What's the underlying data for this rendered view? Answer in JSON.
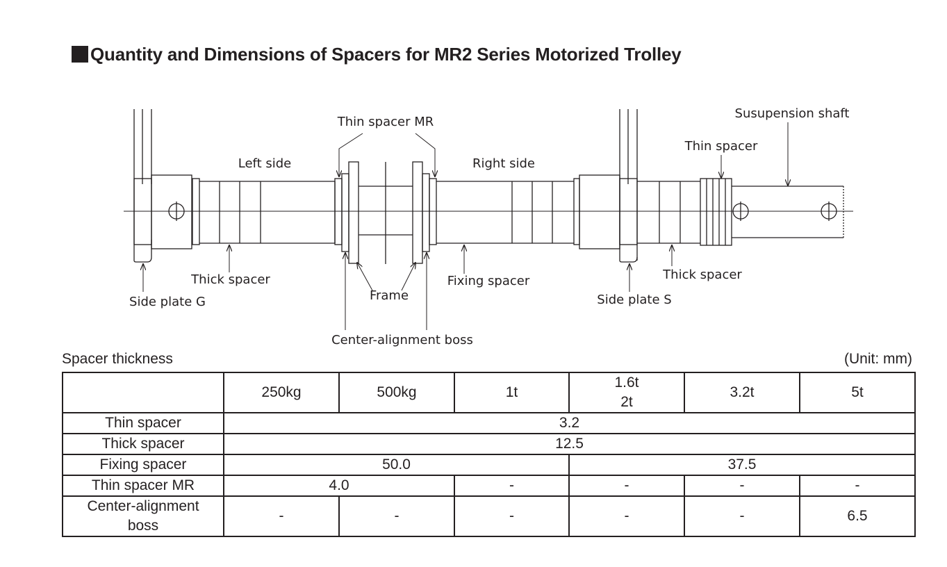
{
  "title": "Quantity and Dimensions of Spacers for MR2 Series Motorized Trolley",
  "diagram": {
    "labels": {
      "thin_spacer_mr": "Thin spacer MR",
      "suspension_shaft": "Susupension shaft",
      "thin_spacer": "Thin spacer",
      "left_side": "Left side",
      "right_side": "Right side",
      "thick_spacer_left": "Thick spacer",
      "side_plate_g": "Side plate G",
      "frame": "Frame",
      "fixing_spacer": "Fixing spacer",
      "side_plate_s": "Side plate S",
      "thick_spacer_right": "Thick spacer",
      "center_alignment_boss": "Center-alignment boss"
    }
  },
  "table": {
    "caption": "Spacer thickness",
    "unit": "(Unit: mm)",
    "columns": [
      "250kg",
      "500kg",
      "1t",
      "1.6t",
      "2t",
      "3.2t",
      "5t"
    ],
    "rows": {
      "thin_spacer": {
        "label": "Thin spacer",
        "value": "3.2"
      },
      "thick_spacer": {
        "label": "Thick spacer",
        "value": "12.5"
      },
      "fixing_spacer": {
        "label": "Fixing spacer",
        "value_a": "50.0",
        "value_b": "37.5"
      },
      "thin_spacer_mr": {
        "label": "Thin spacer MR",
        "values": [
          "4.0",
          "-",
          "-",
          "-",
          "-"
        ]
      },
      "center_alignment_boss": {
        "label_line1": "Center-alignment",
        "label_line2": "boss",
        "values": [
          "-",
          "-",
          "-",
          "-",
          "-",
          "6.5"
        ]
      }
    }
  }
}
